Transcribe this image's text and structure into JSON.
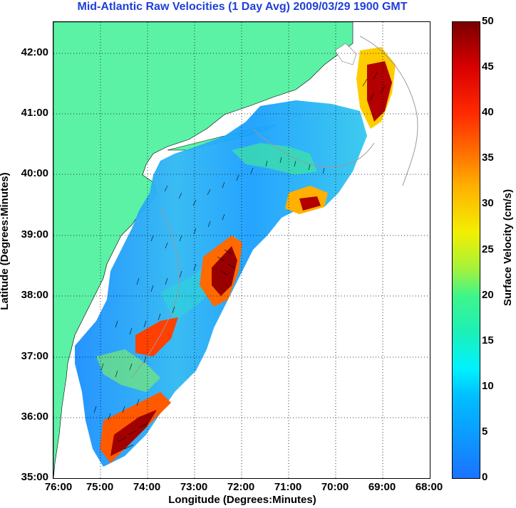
{
  "title": "Mid-Atlantic Raw Velocities (1 Day Avg) 2009/03/29 1900 GMT",
  "x_axis": {
    "label": "Longitude (Degrees:Minutes)",
    "ticks": [
      "76:00",
      "75:00",
      "74:00",
      "73:00",
      "72:00",
      "71:00",
      "70:00",
      "69:00",
      "68:00"
    ]
  },
  "y_axis": {
    "label": "Latitude (Degrees:Minutes)",
    "ticks": [
      "42:00",
      "41:00",
      "40:00",
      "39:00",
      "38:00",
      "37:00",
      "36:00",
      "35:00"
    ]
  },
  "colorbar": {
    "label": "Surface Velocity (cm/s)",
    "ticks": [
      "50",
      "45",
      "40",
      "35",
      "30",
      "25",
      "20",
      "15",
      "10",
      "5",
      "0"
    ],
    "range": [
      0,
      50
    ]
  },
  "colors": {
    "title": "#1f3fd8",
    "land": "#5cf2a6",
    "low_speed": "#1a8fff",
    "high_speed": "#8b0000",
    "grid": "#000000"
  }
}
